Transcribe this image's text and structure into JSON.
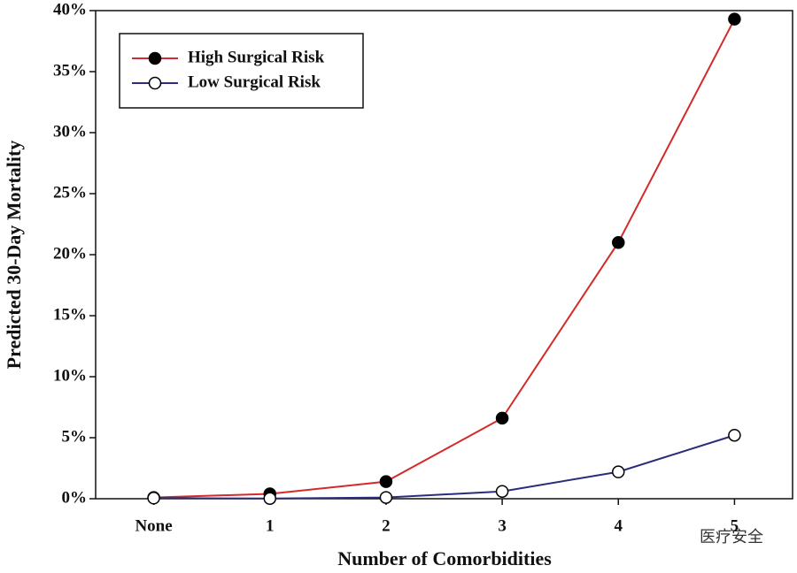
{
  "chart_data": {
    "type": "line",
    "x_label": "Number of Comorbidities",
    "y_label": "Predicted 30-Day Mortality",
    "categories": [
      "None",
      "1",
      "2",
      "3",
      "4",
      "5"
    ],
    "series": [
      {
        "name": "High Surgical Risk",
        "color": "#d42a2a",
        "marker_fill": "#000000",
        "values": [
          0.1,
          0.4,
          1.4,
          6.6,
          21.0,
          39.3
        ]
      },
      {
        "name": "Low Surgical Risk",
        "color": "#2c2c7c",
        "marker_fill": "#ffffff",
        "values": [
          0.05,
          0.02,
          0.1,
          0.6,
          2.2,
          5.2
        ]
      }
    ],
    "ylim": [
      0,
      40
    ],
    "yticks": [
      {
        "value": 0,
        "label": "0%"
      },
      {
        "value": 5,
        "label": "5%"
      },
      {
        "value": 10,
        "label": "10%"
      },
      {
        "value": 15,
        "label": "15%"
      },
      {
        "value": 20,
        "label": "20%"
      },
      {
        "value": 25,
        "label": "25%"
      },
      {
        "value": 30,
        "label": "30%"
      },
      {
        "value": 35,
        "label": "35%"
      },
      {
        "value": 40,
        "label": "40%"
      }
    ],
    "grid": false,
    "legend": "upper left",
    "watermark": "医疗安全"
  }
}
